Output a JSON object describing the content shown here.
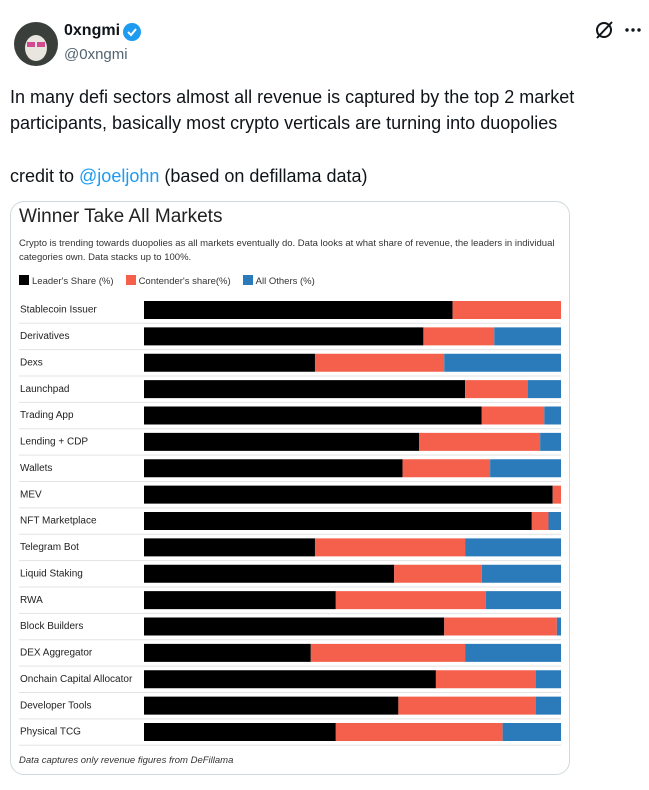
{
  "tweet": {
    "name": "0xngmi",
    "handle": "@0xngmi",
    "text": "In many defi sectors almost all revenue is captured by the top 2 market participants, basically most crypto verticals are turning into duopolies",
    "credit": {
      "prefix": "credit to ",
      "mention": "@joeljohn",
      "suffix": " (based on defillama data)"
    }
  },
  "chart_data": {
    "type": "stacked-barh",
    "title": "Winner Take All Markets",
    "subtitle": "Crypto is trending towards duopolies as all markets eventually do. Data looks at what share of revenue, the leaders in individual categories own. Data stacks up to 100%.",
    "footnote": "Data captures only revenue figures from DeFillama",
    "categories": [
      "Stablecoin Issuer",
      "Derivatives",
      "Dexs",
      "Launchpad",
      "Trading App",
      "Lending + CDP",
      "Wallets",
      "MEV",
      "NFT Marketplace",
      "Telegram Bot",
      "Liquid Staking",
      "RWA",
      "Block Builders",
      "DEX Aggregator",
      "Onchain Capital Allocator",
      "Developer Tools",
      "Physical TCG"
    ],
    "series": [
      {
        "name": "Leader's Share (%)",
        "color": "#000000",
        "values": [
          74,
          67,
          41,
          77,
          81,
          66,
          62,
          98,
          93,
          41,
          60,
          46,
          72,
          40,
          70,
          61,
          46
        ]
      },
      {
        "name": "Contender's share(%)",
        "color": "#f4604c",
        "values": [
          26,
          17,
          31,
          15,
          15,
          29,
          21,
          2,
          4,
          36,
          21,
          36,
          27,
          37,
          24,
          33,
          40
        ]
      },
      {
        "name": "All Others (%)",
        "color": "#2b7bba",
        "values": [
          0,
          16,
          28,
          8,
          4,
          5,
          17,
          0,
          3,
          23,
          19,
          18,
          1,
          23,
          6,
          6,
          14
        ]
      }
    ],
    "xlim": [
      0,
      100
    ]
  }
}
